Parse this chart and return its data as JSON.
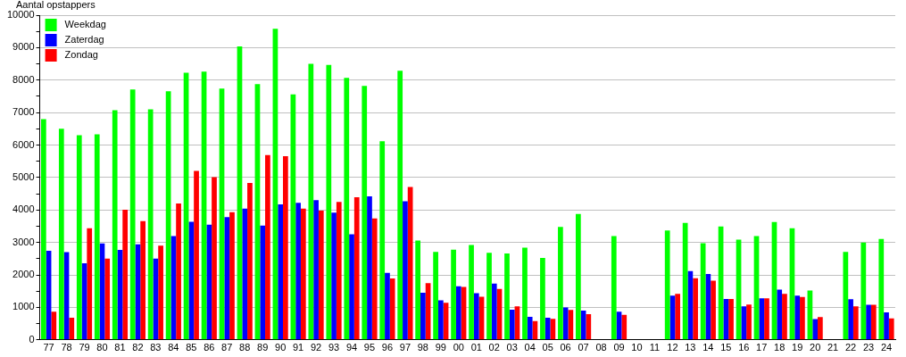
{
  "chart_data": {
    "type": "bar",
    "ylabel": "Aantal opstappers",
    "categories": [
      "77",
      "78",
      "79",
      "80",
      "81",
      "82",
      "83",
      "84",
      "85",
      "86",
      "87",
      "88",
      "89",
      "90",
      "91",
      "92",
      "93",
      "94",
      "95",
      "96",
      "97",
      "98",
      "99",
      "00",
      "01",
      "02",
      "03",
      "04",
      "05",
      "06",
      "07",
      "08",
      "09",
      "10",
      "11",
      "12",
      "13",
      "14",
      "15",
      "16",
      "17",
      "18",
      "19",
      "20",
      "21",
      "22",
      "23",
      "24"
    ],
    "series": [
      {
        "name": "Weekdag",
        "color": "#00ff00",
        "values": [
          6800,
          6500,
          6300,
          6330,
          7070,
          7710,
          7100,
          7660,
          8230,
          8260,
          7740,
          9040,
          7880,
          9580,
          7560,
          8500,
          8470,
          8070,
          7820,
          6120,
          8290,
          3060,
          2710,
          2780,
          2920,
          2680,
          2660,
          2840,
          2520,
          3480,
          3880,
          null,
          3200,
          null,
          null,
          3370,
          3600,
          2980,
          3490,
          3090,
          3200,
          3630,
          3440,
          1520,
          null,
          2710,
          3000,
          3110
        ]
      },
      {
        "name": "Zaterdag",
        "color": "#0000ff",
        "values": [
          2740,
          2700,
          2360,
          2970,
          2770,
          2940,
          2500,
          3200,
          3640,
          3550,
          3780,
          4040,
          3520,
          4170,
          4220,
          4300,
          3920,
          3250,
          4420,
          2060,
          4270,
          1450,
          1220,
          1650,
          1440,
          1730,
          930,
          710,
          680,
          1000,
          900,
          null,
          870,
          null,
          null,
          1360,
          2120,
          2030,
          1260,
          1030,
          1280,
          1550,
          1360,
          640,
          null,
          1250,
          1080,
          850
        ]
      },
      {
        "name": "Zondag",
        "color": "#ff0000",
        "values": [
          870,
          680,
          3440,
          2500,
          4010,
          3660,
          2900,
          4200,
          5200,
          5010,
          3930,
          4830,
          5690,
          5660,
          4040,
          3980,
          4250,
          4390,
          3740,
          1890,
          4710,
          1750,
          1140,
          1630,
          1330,
          1570,
          1030,
          580,
          650,
          920,
          790,
          null,
          770,
          null,
          null,
          1420,
          1900,
          1820,
          1260,
          1090,
          1280,
          1420,
          1320,
          700,
          null,
          1030,
          1080,
          660
        ]
      }
    ],
    "ylim": [
      0,
      10000
    ],
    "yticks": [
      0,
      {
        "value": 500,
        "label": null
      },
      1000,
      {
        "value": 1500,
        "label": null
      },
      2000,
      {
        "value": 2500,
        "label": null
      },
      3000,
      {
        "value": 3500,
        "label": null
      },
      4000,
      {
        "value": 4500,
        "label": null
      },
      5000,
      {
        "value": 5500,
        "label": null
      },
      6000,
      {
        "value": 6500,
        "label": null
      },
      7000,
      {
        "value": 7500,
        "label": null
      },
      8000,
      {
        "value": 8500,
        "label": null
      },
      9000,
      {
        "value": 9500,
        "label": null
      },
      10000
    ],
    "grid": "y",
    "legend": "top left"
  }
}
